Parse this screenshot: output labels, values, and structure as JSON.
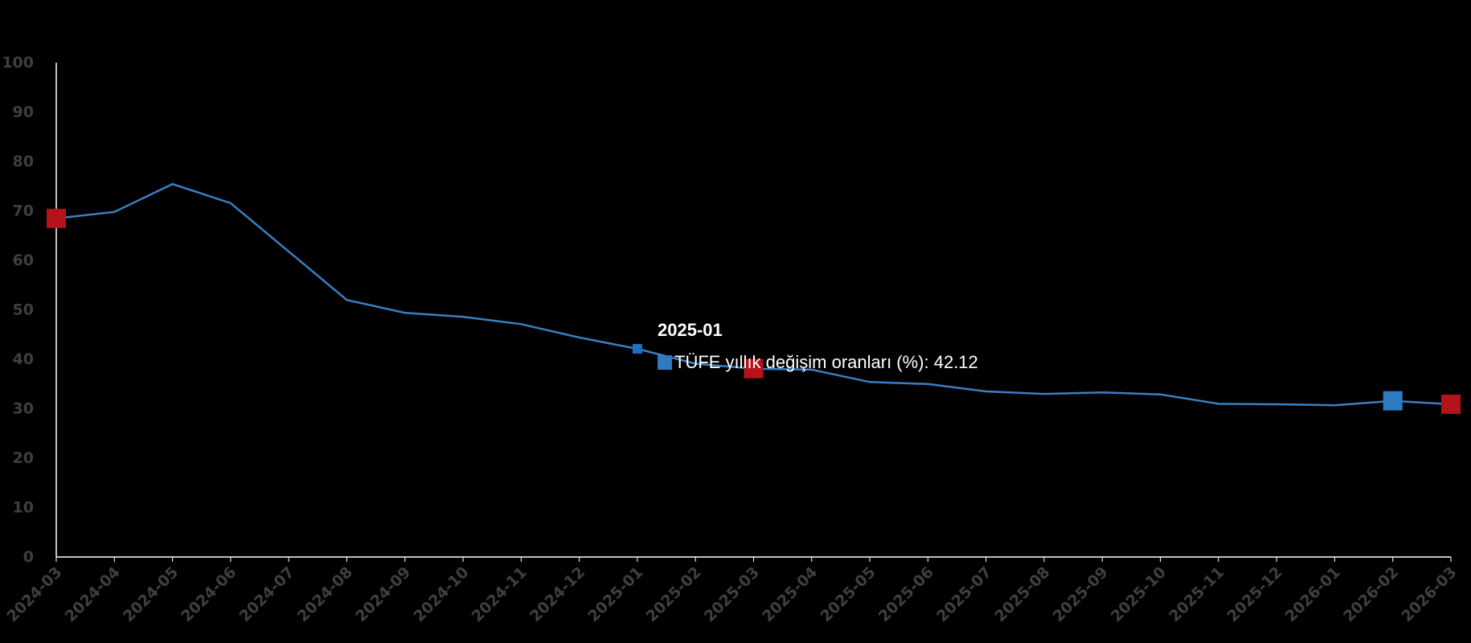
{
  "colors": {
    "line": "#3a7fc1",
    "marker_red": "#b5121b",
    "marker_blue": "#2f7bbf",
    "axis": "#ffffff",
    "tick_text": "#3f3f3f",
    "background": "#000000"
  },
  "tooltip": {
    "title": "2025-01",
    "label": "TÜFE yıllık değişim oranları (%): 42.12"
  },
  "chart_data": {
    "type": "line",
    "title": "",
    "xlabel": "",
    "ylabel": "",
    "ylim": [
      0,
      100
    ],
    "yticks": [
      0,
      10,
      20,
      30,
      40,
      50,
      60,
      70,
      80,
      90,
      100
    ],
    "legend": "none",
    "grid": false,
    "categories": [
      "2024-03",
      "2024-04",
      "2024-05",
      "2024-06",
      "2024-07",
      "2024-08",
      "2024-09",
      "2024-10",
      "2024-11",
      "2024-12",
      "2025-01",
      "2025-02",
      "2025-03",
      "2025-04",
      "2025-05",
      "2025-06",
      "2025-07",
      "2025-08",
      "2025-09",
      "2025-10",
      "2025-11",
      "2025-12",
      "2026-01",
      "2026-02",
      "2026-03"
    ],
    "series": [
      {
        "name": "TÜFE yıllık değişim oranları (%)",
        "values": [
          68.5,
          69.8,
          75.45,
          71.6,
          61.8,
          52.0,
          49.4,
          48.6,
          47.1,
          44.4,
          42.12,
          39.1,
          38.1,
          37.9,
          35.4,
          35.0,
          33.5,
          33.0,
          33.3,
          32.9,
          31.0,
          30.9,
          30.7,
          31.6,
          30.9
        ]
      }
    ],
    "highlights": [
      {
        "category": "2024-03",
        "color": "red"
      },
      {
        "category": "2025-01",
        "color": "blue_small"
      },
      {
        "category": "2025-03",
        "color": "red"
      },
      {
        "category": "2026-02",
        "color": "blue"
      },
      {
        "category": "2026-03",
        "color": "red"
      }
    ]
  }
}
